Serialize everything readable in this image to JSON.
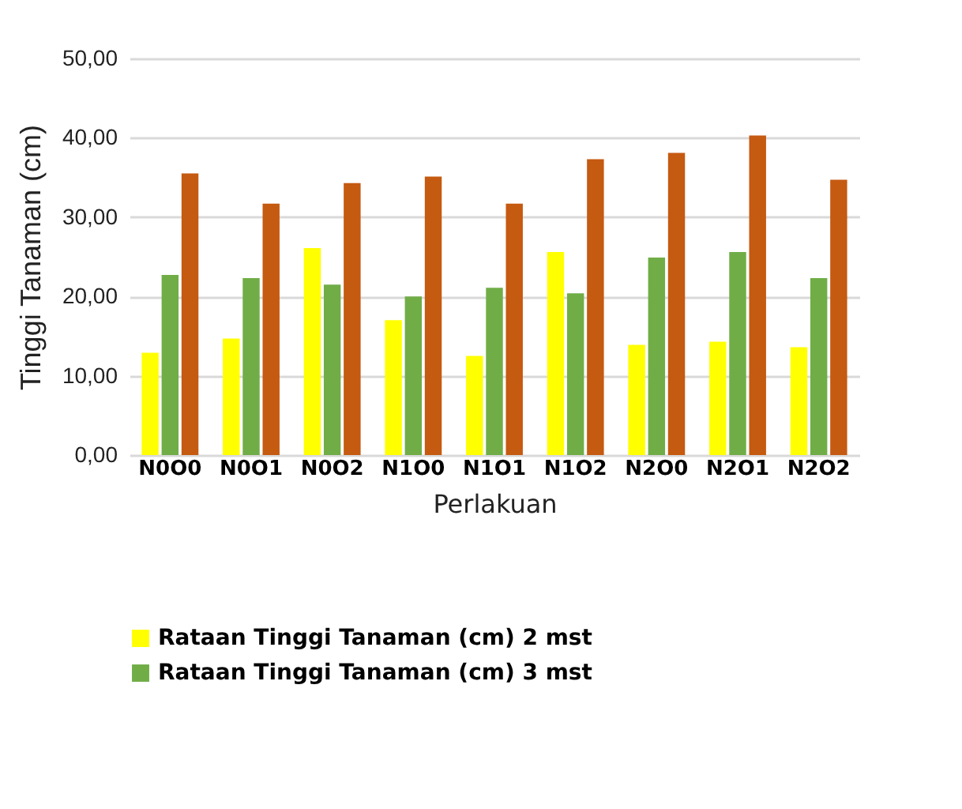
{
  "chart_data": {
    "type": "bar",
    "xlabel": "Perlakuan",
    "ylabel": "Tinggi Tanaman  (cm)",
    "categories": [
      "N0O0",
      "N0O1",
      "N0O2",
      "N1O0",
      "N1O1",
      "N1O2",
      "N2O0",
      "N2O1",
      "N2O2"
    ],
    "series": [
      {
        "name": "Rataan Tinggi Tanaman (cm) 2 mst",
        "color": "#ffff00",
        "values": [
          12.9,
          14.7,
          26.1,
          17.0,
          12.5,
          25.6,
          13.9,
          14.3,
          13.6
        ]
      },
      {
        "name": "Rataan Tinggi Tanaman (cm) 3 mst",
        "color": "#70ad47",
        "values": [
          22.7,
          22.3,
          21.5,
          20.0,
          21.1,
          20.4,
          24.9,
          25.6,
          22.3
        ]
      },
      {
        "color": "#c55a11",
        "values": [
          35.5,
          31.7,
          34.3,
          35.1,
          31.7,
          37.3,
          38.1,
          40.3,
          34.7
        ]
      }
    ],
    "ylim": [
      0,
      50
    ],
    "yticks": [
      {
        "value": 0,
        "label": "0,00"
      },
      {
        "value": 10,
        "label": "10,00"
      },
      {
        "value": 20,
        "label": "20,00"
      },
      {
        "value": 30,
        "label": "30,00"
      },
      {
        "value": 40,
        "label": "40,00"
      },
      {
        "value": 50,
        "label": "50,00"
      }
    ],
    "grid": "y",
    "legend": "bottom"
  }
}
